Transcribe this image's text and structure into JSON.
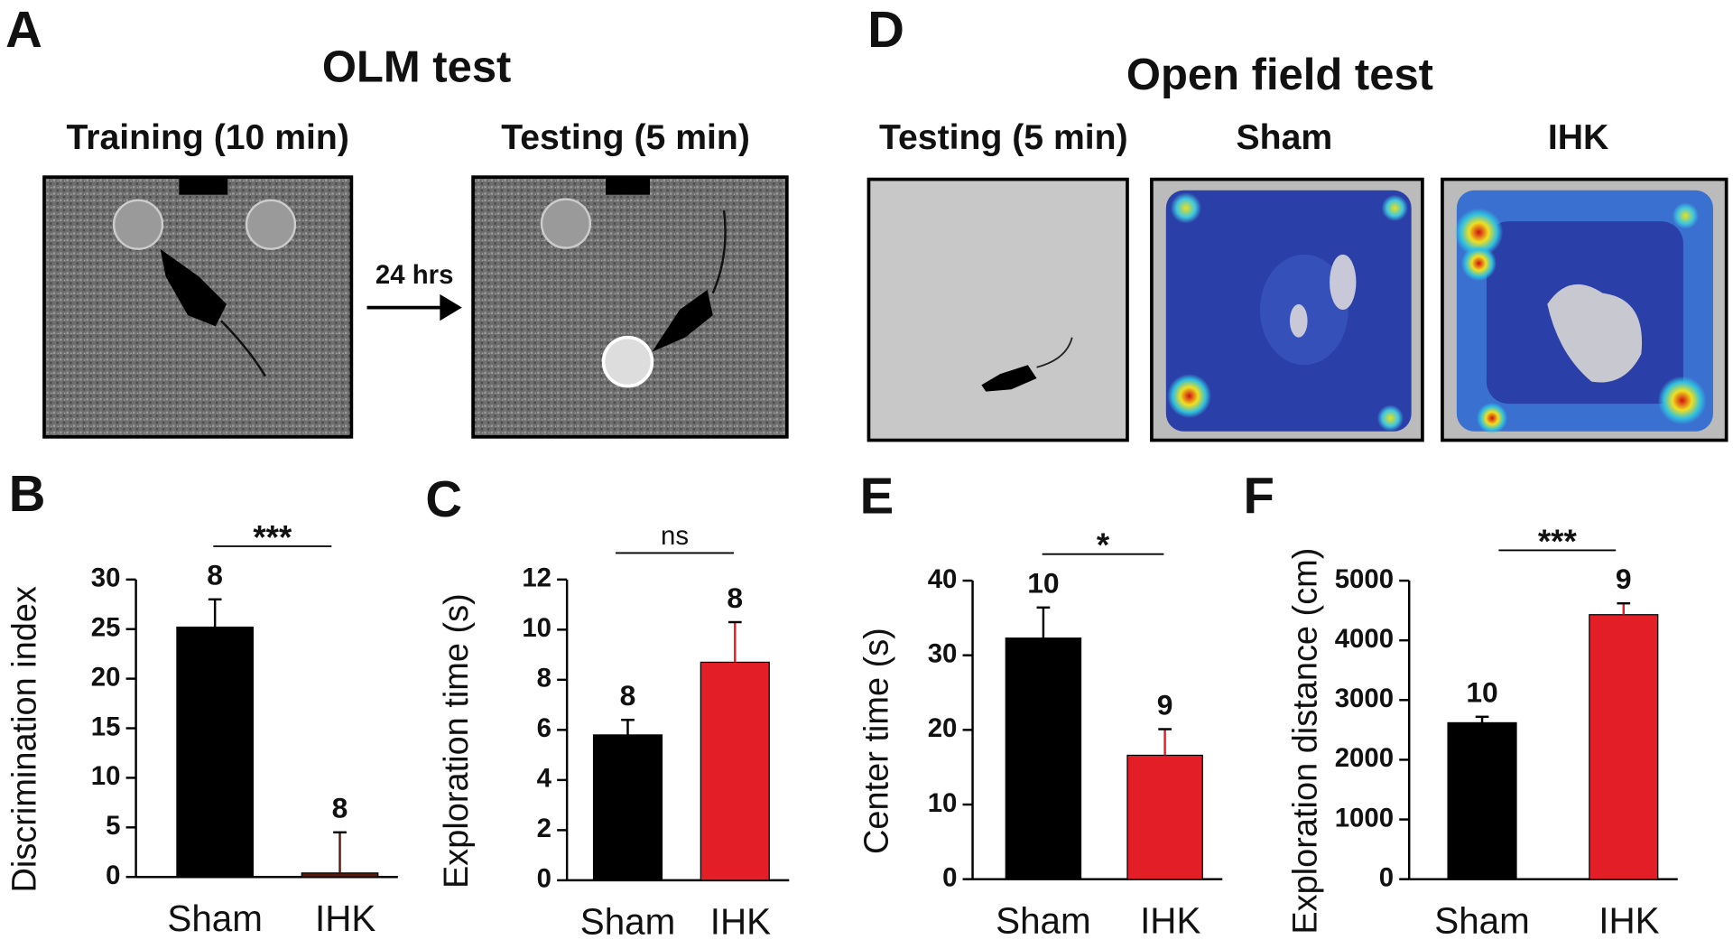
{
  "figure": {
    "olm": {
      "letter": "A",
      "title": "OLM test",
      "training": "Training (10 min)",
      "testing": "Testing (5 min)",
      "arrow": "24 hrs"
    },
    "open_field": {
      "letter": "D",
      "title": "Open field test",
      "testing": "Testing (5 min)",
      "sham": "Sham",
      "ihk": "IHK"
    }
  },
  "chart_data": [
    {
      "type": "bar",
      "letter": "B",
      "y_label": "Discrimination index",
      "categories": [
        "Sham",
        "IHK"
      ],
      "values": [
        25.2,
        0.4
      ],
      "errors": [
        2.8,
        4.1
      ],
      "colors": [
        "#000000",
        "#5a1a10"
      ],
      "n_labels": [
        "8",
        "8"
      ],
      "significance": "***",
      "ylim": [
        0,
        30
      ],
      "yticks": [
        0,
        5,
        10,
        15,
        20,
        25,
        30
      ]
    },
    {
      "type": "bar",
      "letter": "C",
      "y_label": "Exploration time (s)",
      "categories": [
        "Sham",
        "IHK"
      ],
      "values": [
        5.8,
        8.7
      ],
      "errors": [
        0.6,
        1.6
      ],
      "colors": [
        "#000000",
        "#e31e26"
      ],
      "n_labels": [
        "8",
        "8"
      ],
      "significance": "ns",
      "ylim": [
        0,
        12
      ],
      "yticks": [
        0,
        2,
        4,
        6,
        8,
        10,
        12
      ]
    },
    {
      "type": "bar",
      "letter": "E",
      "y_label": "Center time (s)",
      "categories": [
        "Sham",
        "IHK"
      ],
      "values": [
        32.3,
        16.6
      ],
      "errors": [
        4.1,
        3.5
      ],
      "colors": [
        "#000000",
        "#e31e26"
      ],
      "n_labels": [
        "10",
        "9"
      ],
      "significance": "*",
      "ylim": [
        0,
        40
      ],
      "yticks": [
        0,
        10,
        20,
        30,
        40
      ]
    },
    {
      "type": "bar",
      "letter": "F",
      "y_label": "Exploration distance (cm)",
      "categories": [
        "Sham",
        "IHK"
      ],
      "values": [
        2620,
        4430
      ],
      "errors": [
        100,
        190
      ],
      "colors": [
        "#000000",
        "#e31e26"
      ],
      "n_labels": [
        "10",
        "9"
      ],
      "significance": "***",
      "ylim": [
        0,
        5000
      ],
      "yticks": [
        0,
        1000,
        2000,
        3000,
        4000,
        5000
      ]
    }
  ]
}
